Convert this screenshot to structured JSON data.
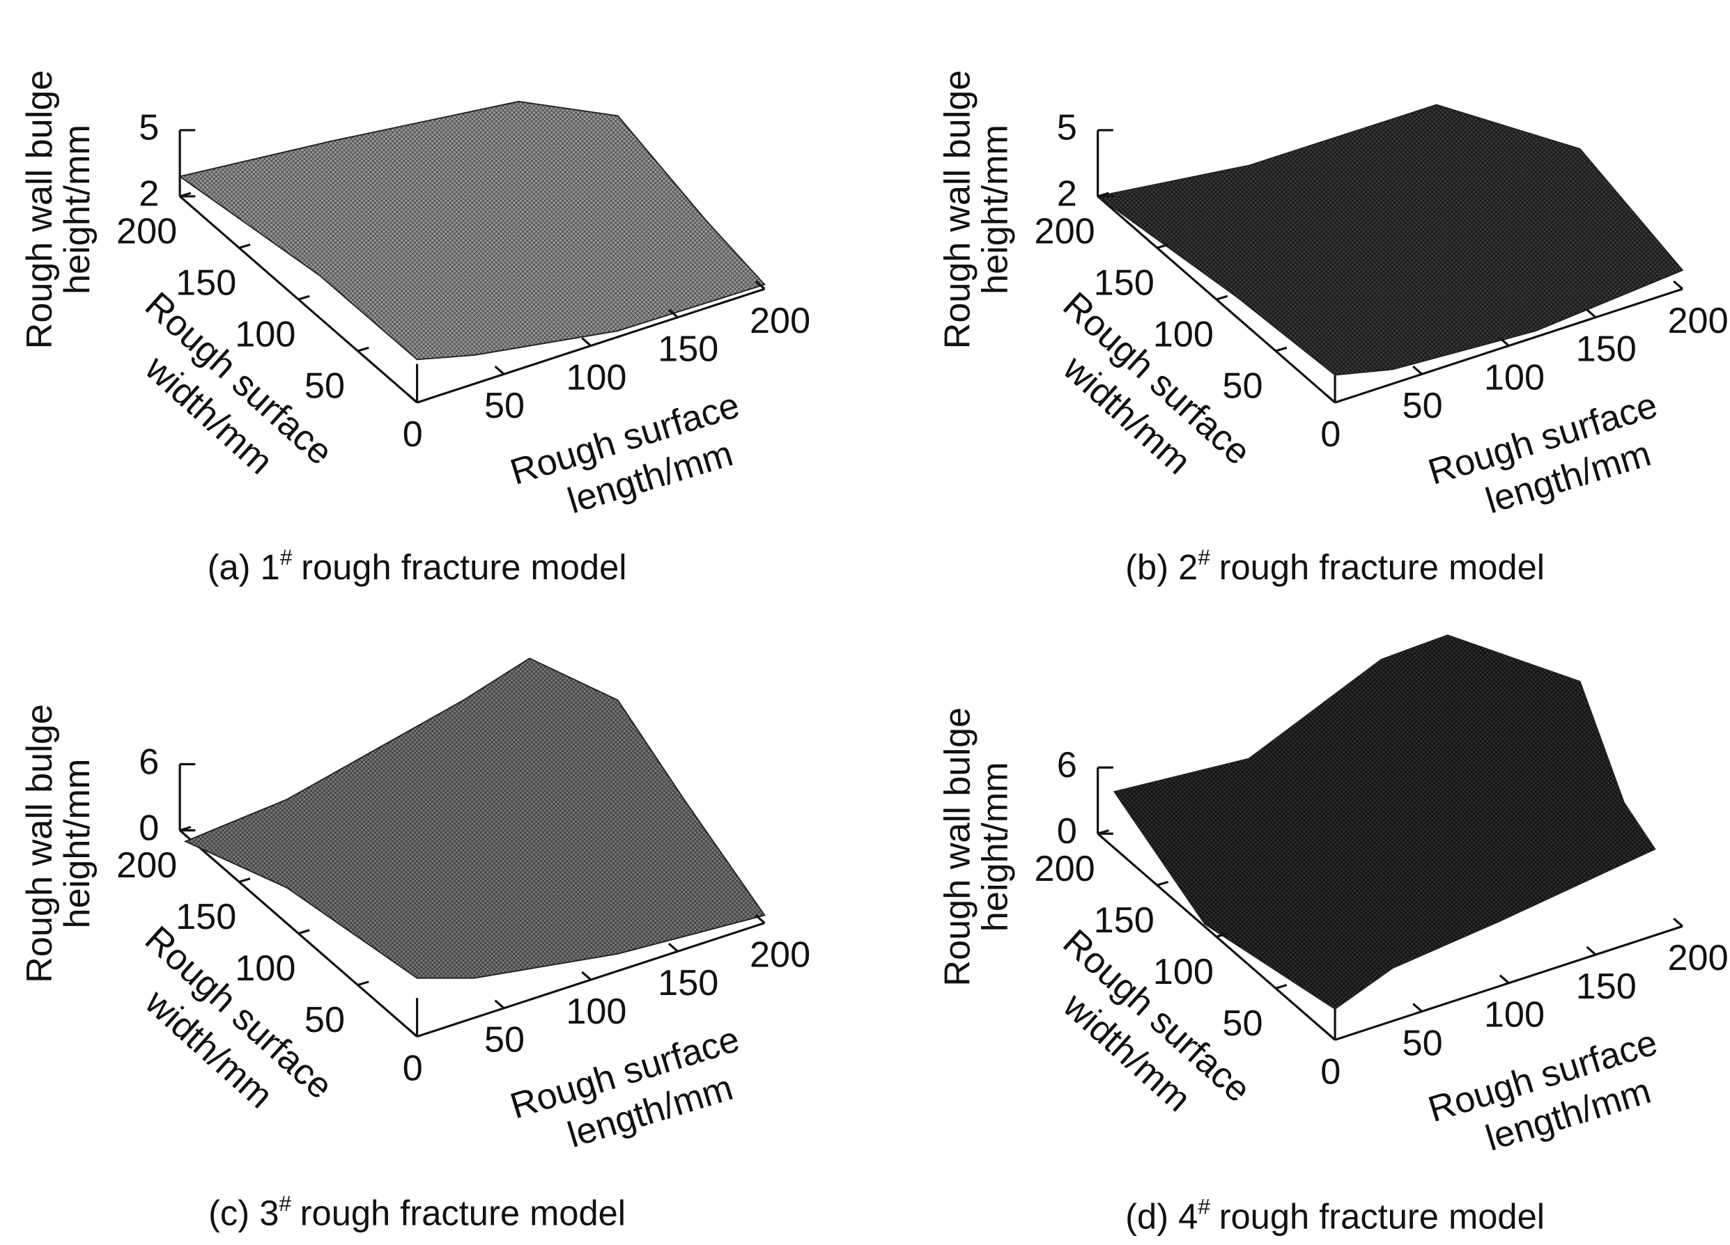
{
  "chart_data": [
    {
      "type": "surface",
      "caption": [
        "(a) 1",
        "#",
        "rough fracture model"
      ],
      "xlabel": [
        "Rough surface",
        "length/mm"
      ],
      "ylabel": [
        "Rough surface",
        "width/mm"
      ],
      "zlabel": [
        "Rough wall bulge",
        "height/mm"
      ],
      "xlim": [
        0,
        200
      ],
      "xticks": [
        0,
        50,
        100,
        150,
        200
      ],
      "ylim": [
        0,
        200
      ],
      "yticks": [
        50,
        100,
        150,
        200
      ],
      "zlim": [
        2,
        5
      ],
      "zticks": [
        2,
        5
      ]
    },
    {
      "type": "surface",
      "caption": [
        "(b) 2",
        "#",
        "rough fracture model"
      ],
      "xlabel": [
        "Rough surface",
        "length/mm"
      ],
      "ylabel": [
        "Rough surface",
        "width/mm"
      ],
      "zlabel": [
        "Rough wall bulge",
        "height/mm"
      ],
      "xlim": [
        0,
        200
      ],
      "xticks": [
        0,
        50,
        100,
        150,
        200
      ],
      "ylim": [
        0,
        200
      ],
      "yticks": [
        50,
        100,
        150,
        200
      ],
      "zlim": [
        2,
        5
      ],
      "zticks": [
        2,
        5
      ]
    },
    {
      "type": "surface",
      "caption": [
        "(c) 3",
        "#",
        "rough fracture model"
      ],
      "xlabel": [
        "Rough surface",
        "length/mm"
      ],
      "ylabel": [
        "Rough surface",
        "width/mm"
      ],
      "zlabel": [
        "Rough wall bulge",
        "height/mm"
      ],
      "xlim": [
        0,
        200
      ],
      "xticks": [
        0,
        50,
        100,
        150,
        200
      ],
      "ylim": [
        0,
        200
      ],
      "yticks": [
        50,
        100,
        150,
        200
      ],
      "zlim": [
        0,
        6
      ],
      "zticks": [
        0,
        6
      ]
    },
    {
      "type": "surface",
      "caption": [
        "(d) 4",
        "#",
        "rough fracture model"
      ],
      "xlabel": [
        "Rough surface",
        "length/mm"
      ],
      "ylabel": [
        "Rough surface",
        "width/mm"
      ],
      "zlabel": [
        "Rough wall bulge",
        "height/mm"
      ],
      "xlim": [
        0,
        200
      ],
      "xticks": [
        0,
        50,
        100,
        150,
        200
      ],
      "ylim": [
        0,
        200
      ],
      "yticks": [
        50,
        100,
        150,
        200
      ],
      "zlim": [
        0,
        6
      ],
      "zticks": [
        0,
        6
      ]
    }
  ]
}
